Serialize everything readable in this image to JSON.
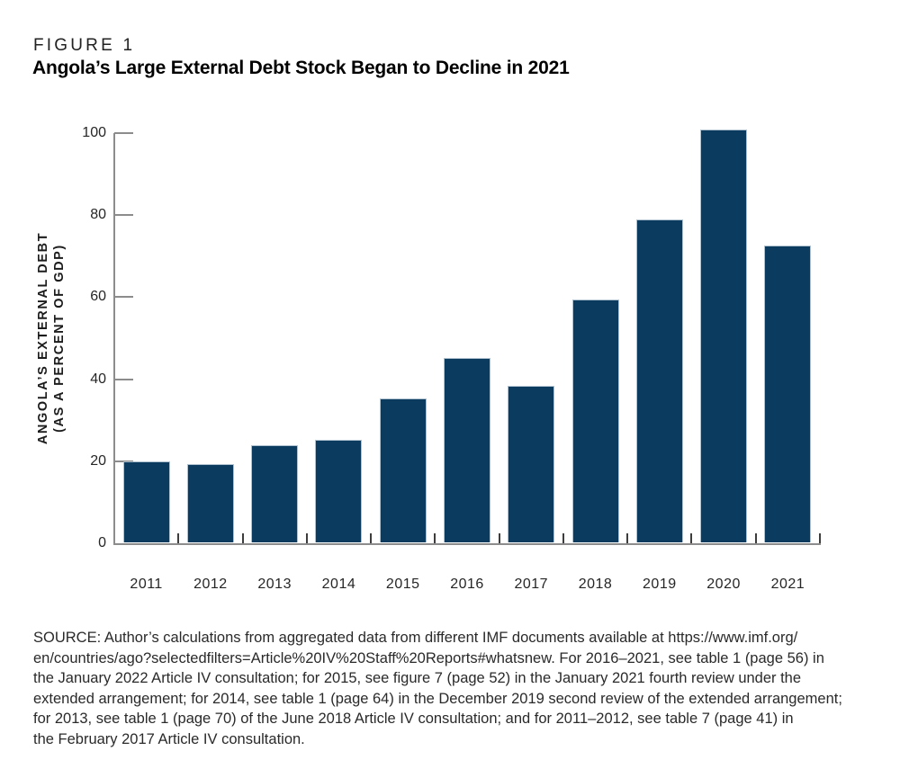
{
  "header": {
    "figure_label": "FIGURE 1",
    "title": "Angola’s Large External Debt Stock Began to Decline in 2021"
  },
  "chart_data": {
    "type": "bar",
    "categories": [
      "2011",
      "2012",
      "2013",
      "2014",
      "2015",
      "2016",
      "2017",
      "2018",
      "2019",
      "2020",
      "2021"
    ],
    "values": [
      19.8,
      19.1,
      23.7,
      25.0,
      35.0,
      45.0,
      38.2,
      59.2,
      78.7,
      100.7,
      72.4
    ],
    "title": "Angola’s Large External Debt Stock Began to Decline in 2021",
    "xlabel": "",
    "ylabel_line1": "ANGOLA’S EXTERNAL DEBT",
    "ylabel_line2": "(AS A PERCENT OF GDP)",
    "ylim": [
      0,
      100
    ],
    "ytick_step": 20,
    "yticks": [
      0,
      20,
      40,
      60,
      80,
      100
    ],
    "grid": false,
    "legend": "none",
    "bar_color": "#0b3b5f",
    "bar_edge_color": "#b0c2d0",
    "axis_color": "#8c8c8c"
  },
  "source": {
    "lines": [
      "SOURCE: Author’s calculations from aggregated data from different IMF documents available at https://www.imf.org/",
      "en/countries/ago?selectedfilters=Article%20IV%20Staff%20Reports#whatsnew. For 2016–2021, see table 1 (page 56) in",
      "the January 2022 Article IV consultation; for 2015, see figure 7 (page 52) in the January 2021 fourth review under the",
      "extended arrangement; for 2014, see table 1 (page 64) in the December 2019 second review of the extended arrangement;",
      "for 2013, see table 1 (page 70) of the June 2018 Article IV consultation; and for 2011–2012, see table 7 (page 41) in",
      "the February 2017 Article IV consultation."
    ]
  }
}
